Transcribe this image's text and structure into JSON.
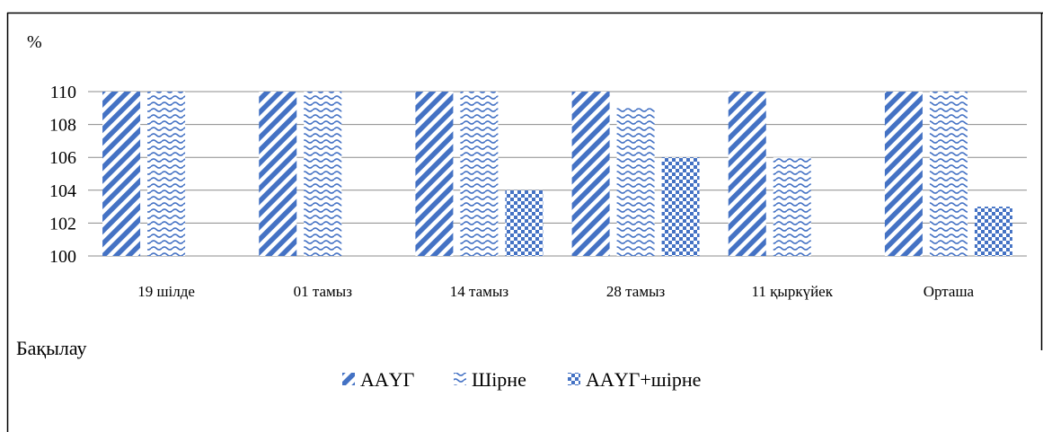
{
  "chart_data": {
    "type": "bar",
    "ylabel": "%",
    "categories": [
      "19 шілде",
      "01 тамыз",
      "14 тамыз",
      "28 тамыз",
      "11 қыркүйек",
      "Орташа"
    ],
    "series": [
      {
        "name": "ААҮГ",
        "values": [
          110,
          110,
          110,
          110,
          110,
          110
        ],
        "pattern": "diagonal"
      },
      {
        "name": "Шірне",
        "values": [
          110,
          110,
          110,
          109,
          106,
          110
        ],
        "pattern": "wave"
      },
      {
        "name": "ААҮГ+шірне",
        "values": [
          null,
          null,
          104,
          106,
          null,
          103
        ],
        "pattern": "checker"
      }
    ],
    "ylim": [
      100,
      110
    ],
    "yticks": [
      100,
      102,
      104,
      106,
      108,
      110
    ],
    "grid": true,
    "legend_position": "bottom",
    "colors": {
      "bar": "#4472c4",
      "grid": "#8c8c8c",
      "axis": "#000000"
    }
  },
  "side_label": "Бақылау"
}
